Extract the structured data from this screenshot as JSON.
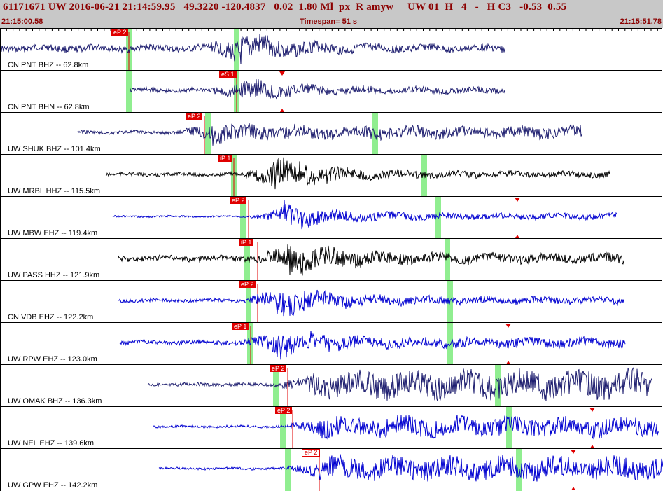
{
  "header": {
    "event_id": "61171671",
    "network": "UW",
    "datetime": "2016-06-21 21:14:59.95",
    "lat": "49.3220",
    "lon": "-120.4837",
    "depth": "0.02",
    "magnitude": "1.80 Ml",
    "type": "px",
    "review": "R",
    "source": "amyw",
    "net2": "UW",
    "version": "01",
    "quality": "H",
    "num": "4",
    "dash": "-",
    "code": "H C3",
    "v1": "-0.53",
    "v2": "0.55",
    "start_time": "21:15:00.58",
    "timespan": "Timespan=  51 s",
    "end_time": "21:15:51.78"
  },
  "colors": {
    "header_bg": "#c8c8c8",
    "header_text": "#8b0000",
    "pick": "#e00000",
    "marker": "#90ee90",
    "trace_navy": "#1c1c6e",
    "trace_black": "#000000",
    "trace_blue": "#0000d0"
  },
  "traces": [
    {
      "label": "CN PNT BHZ -- 62.8km",
      "pick": "eP 2",
      "color": "navy",
      "pick_outline": false
    },
    {
      "label": "CN PNT BHN -- 62.8km",
      "pick": "eS 1",
      "color": "navy",
      "pick_outline": false
    },
    {
      "label": "UW SHUK BHZ -- 101.4km",
      "pick": "eP 2",
      "color": "navy",
      "pick_outline": false
    },
    {
      "label": "UW MRBL HHZ -- 115.5km",
      "pick": "iP 1",
      "color": "black",
      "pick_outline": false
    },
    {
      "label": "UW MBW EHZ -- 119.4km",
      "pick": "eP 2",
      "color": "blue",
      "pick_outline": false
    },
    {
      "label": "UW PASS HHZ -- 121.9km",
      "pick": "iP 1",
      "color": "black",
      "pick_outline": false
    },
    {
      "label": "CN VDB EHZ -- 122.2km",
      "pick": "eP 2",
      "color": "blue",
      "pick_outline": false
    },
    {
      "label": "UW RPW EHZ -- 123.0km",
      "pick": "eP 1",
      "color": "blue",
      "pick_outline": false
    },
    {
      "label": "UW OMAK BHZ -- 136.3km",
      "pick": "eP 2",
      "color": "navy",
      "pick_outline": false
    },
    {
      "label": "UW NEL EHZ -- 139.6km",
      "pick": "eP 2",
      "color": "blue",
      "pick_outline": false
    },
    {
      "label": "UW GPW EHZ -- 142.2km",
      "pick": "eP 2",
      "color": "blue",
      "pick_outline": true
    }
  ]
}
